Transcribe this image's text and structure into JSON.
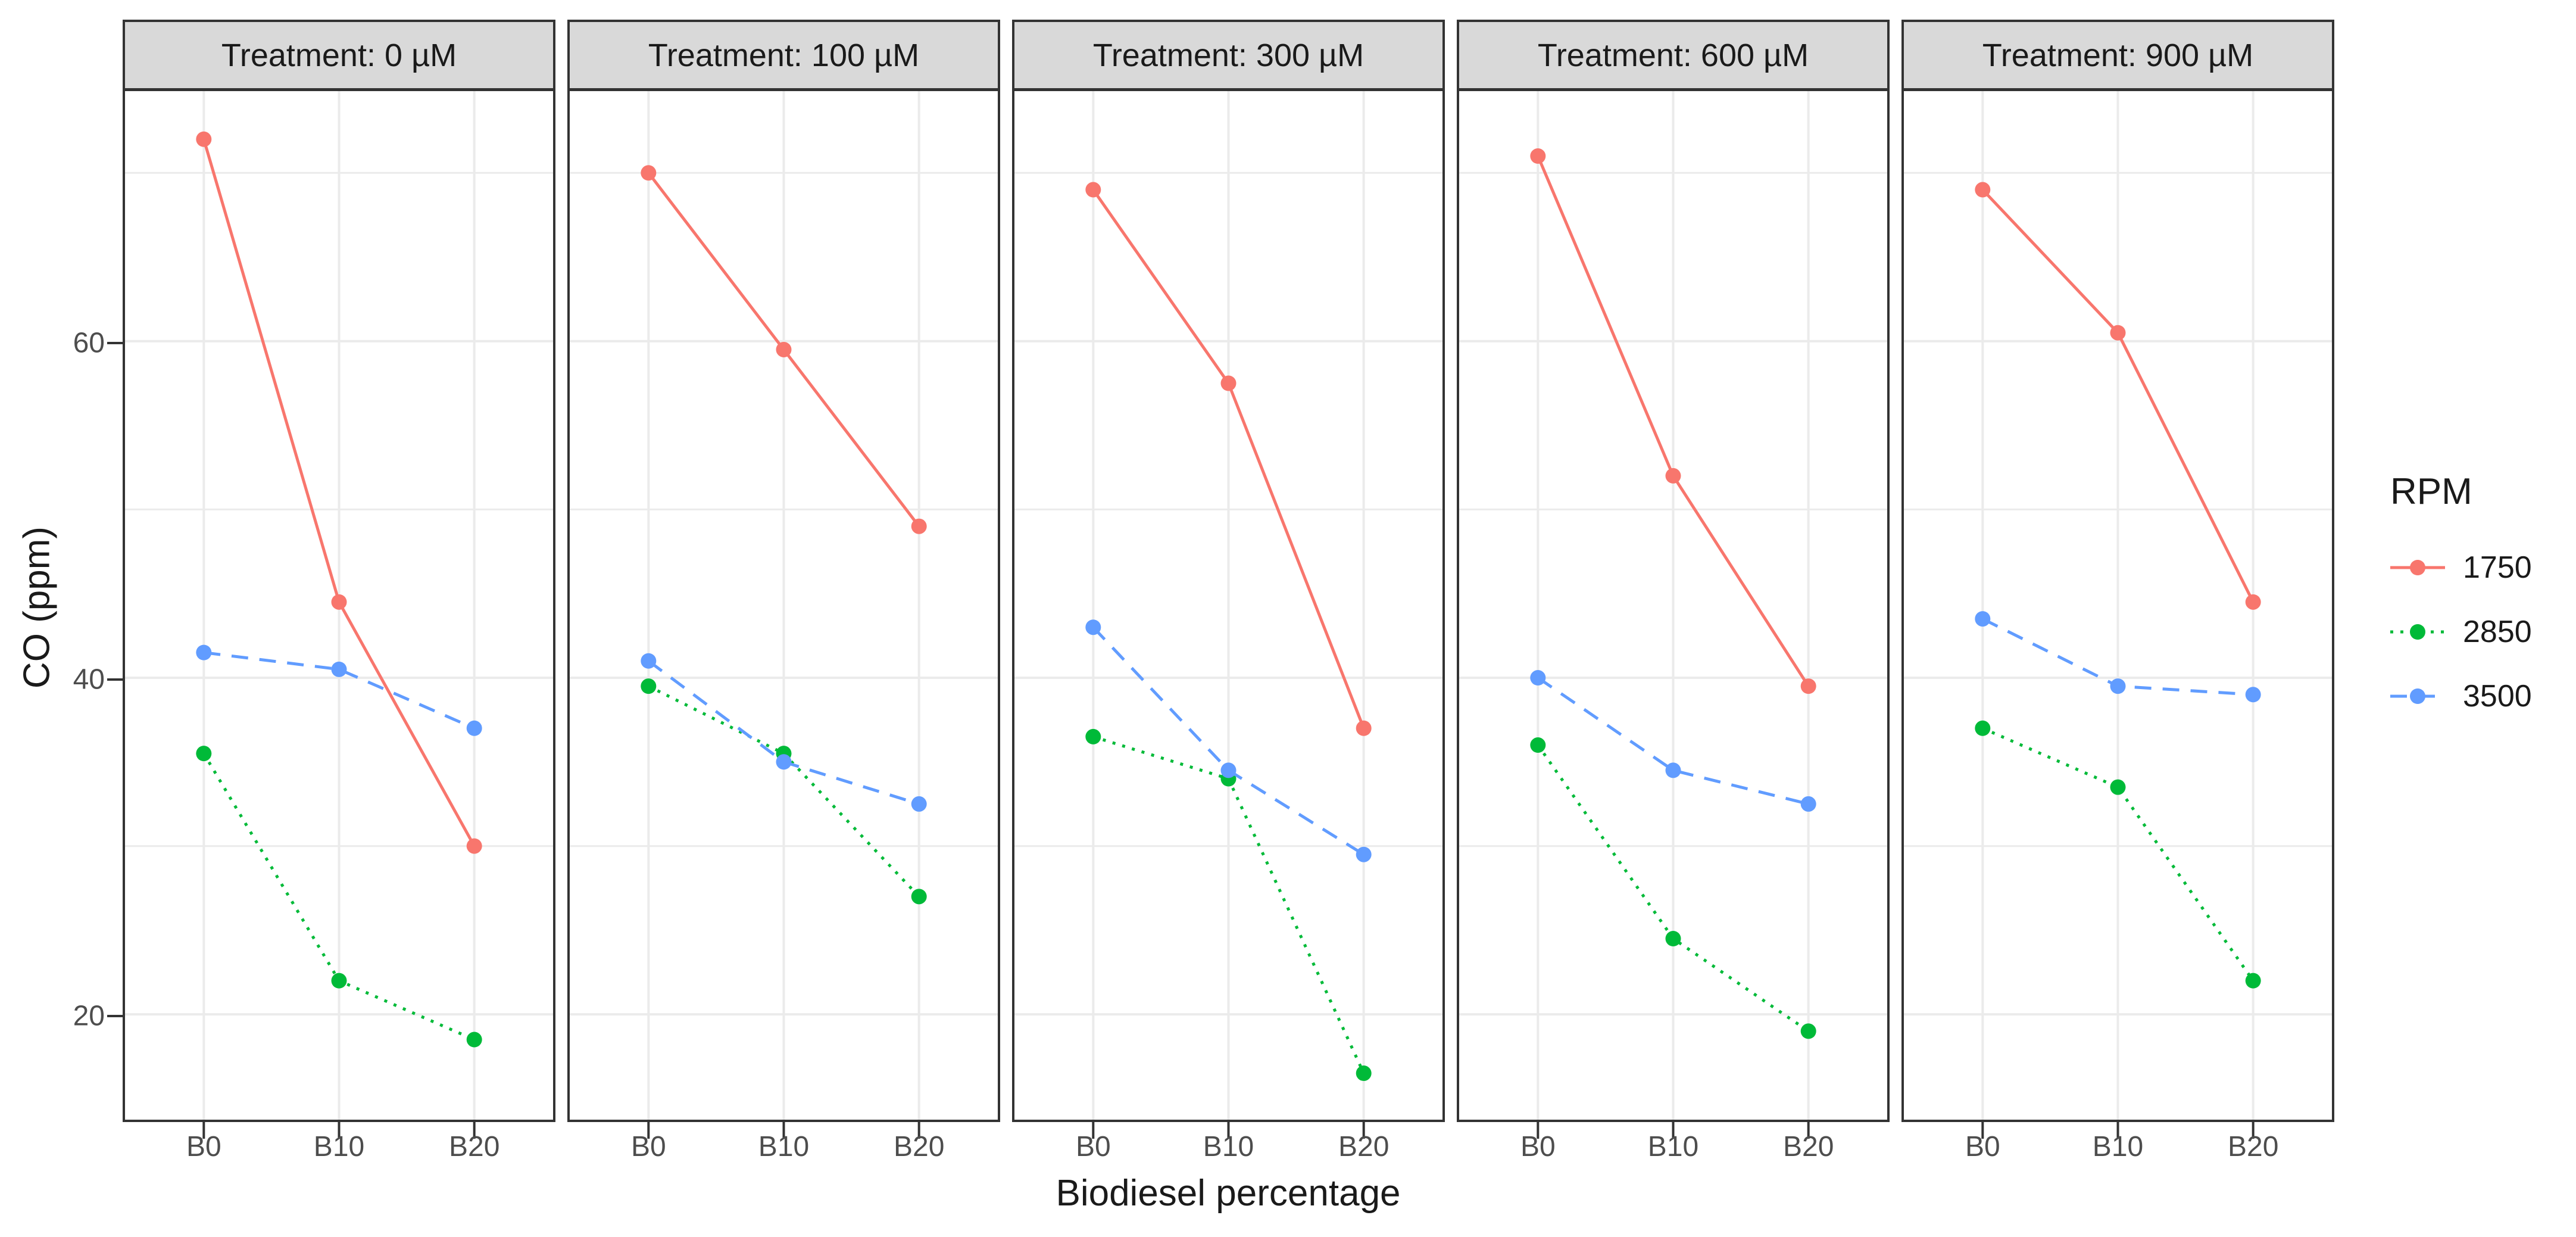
{
  "chart_data": {
    "type": "line",
    "x_label": "Biodiesel percentage",
    "y_label": "CO (ppm)",
    "categories": [
      "B0",
      "B10",
      "B20"
    ],
    "y_ticks": [
      60,
      40,
      20
    ],
    "y_domain": [
      13.6,
      75
    ],
    "grid": "on",
    "grid_values": [
      20,
      30,
      40,
      50,
      60,
      70
    ],
    "legend": {
      "title": "RPM",
      "position": "right"
    },
    "series_styles": [
      {
        "name": "1750",
        "color": "#F8766D",
        "dash": "solid"
      },
      {
        "name": "2850",
        "color": "#00BA38",
        "dash": "dotted"
      },
      {
        "name": "3500",
        "color": "#619CFF",
        "dash": "dashed"
      }
    ],
    "colors": {
      "grid": "#EBEBEB",
      "panel_border": "#333333",
      "strip_background": "#D9D9D9",
      "tick_text": "#4D4D4D"
    },
    "facets": [
      {
        "title": "Treatment: 0 µM",
        "series": [
          {
            "name": "1750",
            "values": [
              72,
              44.5,
              30
            ]
          },
          {
            "name": "2850",
            "values": [
              35.5,
              22,
              18.5
            ]
          },
          {
            "name": "3500",
            "values": [
              41.5,
              40.5,
              37
            ]
          }
        ]
      },
      {
        "title": "Treatment: 100 µM",
        "series": [
          {
            "name": "1750",
            "values": [
              70,
              59.5,
              49
            ]
          },
          {
            "name": "2850",
            "values": [
              39.5,
              35.5,
              27
            ]
          },
          {
            "name": "3500",
            "values": [
              41,
              35,
              32.5
            ]
          }
        ]
      },
      {
        "title": "Treatment: 300 µM",
        "series": [
          {
            "name": "1750",
            "values": [
              69,
              57.5,
              37
            ]
          },
          {
            "name": "2850",
            "values": [
              36.5,
              34,
              16.5
            ]
          },
          {
            "name": "3500",
            "values": [
              43,
              34.5,
              29.5
            ]
          }
        ]
      },
      {
        "title": "Treatment: 600 µM",
        "series": [
          {
            "name": "1750",
            "values": [
              71,
              52,
              39.5
            ]
          },
          {
            "name": "2850",
            "values": [
              36,
              24.5,
              19
            ]
          },
          {
            "name": "3500",
            "values": [
              40,
              34.5,
              32.5
            ]
          }
        ]
      },
      {
        "title": "Treatment: 900 µM",
        "series": [
          {
            "name": "1750",
            "values": [
              69,
              60.5,
              44.5
            ]
          },
          {
            "name": "2850",
            "values": [
              37,
              33.5,
              22
            ]
          },
          {
            "name": "3500",
            "values": [
              43.5,
              39.5,
              39
            ]
          }
        ]
      }
    ]
  }
}
